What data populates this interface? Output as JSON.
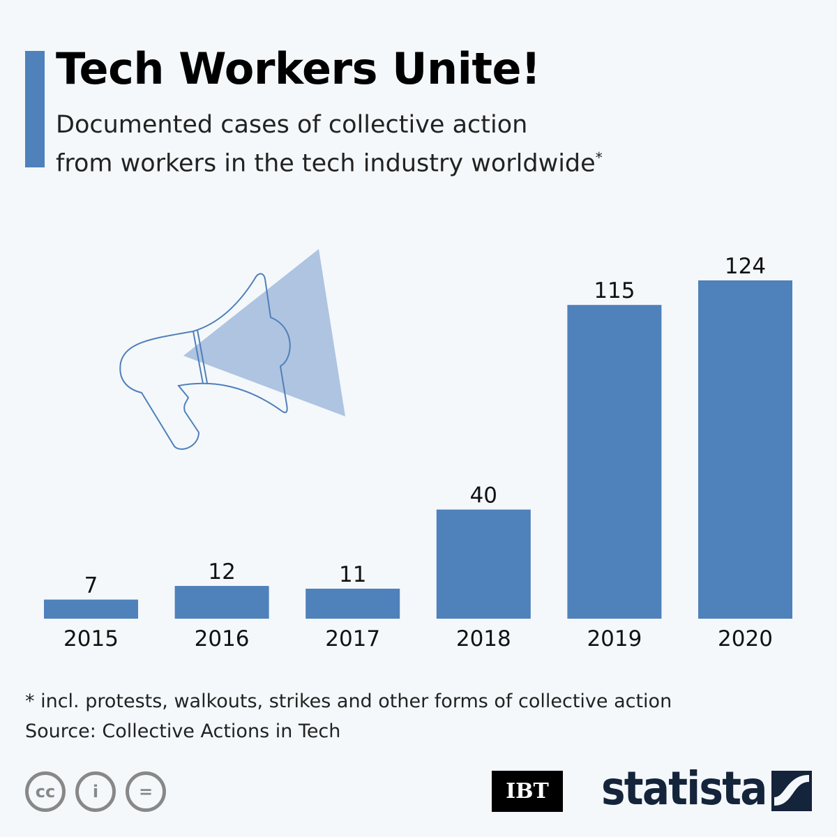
{
  "header": {
    "title": "Tech Workers Unite!",
    "subtitle_line1": "Documented cases of collective action",
    "subtitle_line2": "from workers in the tech industry worldwide",
    "subtitle_mark": "*"
  },
  "chart_data": {
    "type": "bar",
    "title": "Tech Workers Unite!",
    "categories": [
      "2015",
      "2016",
      "2017",
      "2018",
      "2019",
      "2020"
    ],
    "values": [
      7,
      12,
      11,
      40,
      115,
      124
    ],
    "xlabel": "",
    "ylabel": "",
    "ylim": [
      0,
      124
    ],
    "grid": false,
    "bar_color": "#4f81bb"
  },
  "footer": {
    "note": "* incl. protests, walkouts, strikes and other forms of collective action",
    "source": "Source: Collective Actions in Tech"
  },
  "logos": {
    "ibt": "IBT",
    "statista": "statista",
    "cc": "cc",
    "by": "i",
    "nd": "="
  }
}
